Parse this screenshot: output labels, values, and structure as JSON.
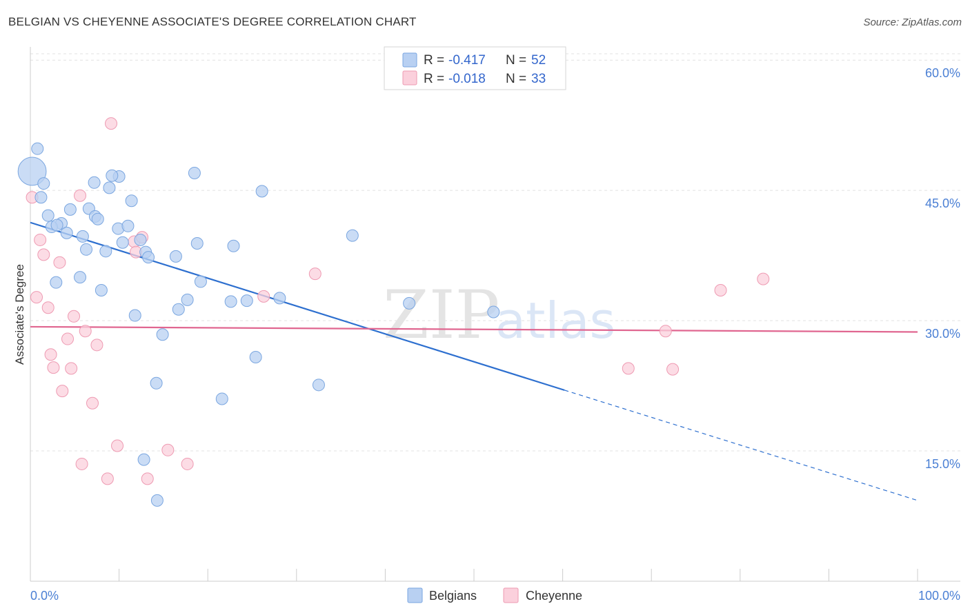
{
  "title": "BELGIAN VS CHEYENNE ASSOCIATE'S DEGREE CORRELATION CHART",
  "source": "Source: ZipAtlas.com",
  "watermark": {
    "zip": "ZIP",
    "atlas": "atlas"
  },
  "colors": {
    "belgians_fill": "#b8d0f2",
    "belgians_stroke": "#7aa6e0",
    "belgians_line": "#2d6fcf",
    "cheyenne_fill": "#fbd0dc",
    "cheyenne_stroke": "#ee9ab2",
    "cheyenne_line": "#e06690",
    "tick_label": "#4a7fd4",
    "grid": "#e2e2e2"
  },
  "legend": {
    "rows": [
      {
        "series": "Belgians",
        "r_label": "R =",
        "r_value": "-0.417",
        "n_label": "N =",
        "n_value": "52"
      },
      {
        "series": "Cheyenne",
        "r_label": "R =",
        "r_value": "-0.018",
        "n_label": "N =",
        "n_value": "33"
      }
    ]
  },
  "chart_data": {
    "type": "scatter",
    "title": "BELGIAN VS CHEYENNE ASSOCIATE'S DEGREE CORRELATION CHART",
    "xlabel": "",
    "ylabel": "Associate's Degree",
    "xlim": [
      0,
      100
    ],
    "ylim": [
      0,
      62
    ],
    "x_tick_labels": [
      {
        "value": 0,
        "label": "0.0%"
      },
      {
        "value": 100,
        "label": "100.0%"
      }
    ],
    "y_ticks": [
      {
        "value": 15,
        "label": "15.0%"
      },
      {
        "value": 30,
        "label": "30.0%"
      },
      {
        "value": 45,
        "label": "45.0%"
      },
      {
        "value": 60,
        "label": "60.0%"
      }
    ],
    "x_minor_ticks": [
      10,
      20,
      30,
      40,
      50,
      60,
      70,
      80,
      90,
      100
    ],
    "grid": true,
    "legend_position": "bottom",
    "series": [
      {
        "name": "Belgians",
        "points": [
          [
            0.8,
            49.8
          ],
          [
            0.2,
            47.2
          ],
          [
            1.5,
            45.8
          ],
          [
            1.2,
            44.2
          ],
          [
            7.2,
            45.9
          ],
          [
            10.0,
            46.6
          ],
          [
            9.2,
            46.7
          ],
          [
            8.9,
            45.3
          ],
          [
            18.5,
            47.0
          ],
          [
            26.1,
            44.9
          ],
          [
            11.4,
            43.8
          ],
          [
            2.0,
            42.1
          ],
          [
            4.5,
            42.8
          ],
          [
            6.6,
            42.9
          ],
          [
            7.3,
            42.0
          ],
          [
            7.6,
            41.7
          ],
          [
            3.5,
            41.2
          ],
          [
            2.4,
            40.8
          ],
          [
            3.0,
            41.0
          ],
          [
            4.1,
            40.1
          ],
          [
            5.9,
            39.7
          ],
          [
            9.9,
            40.6
          ],
          [
            11.0,
            40.9
          ],
          [
            10.4,
            39.0
          ],
          [
            12.4,
            39.3
          ],
          [
            18.8,
            38.9
          ],
          [
            22.9,
            38.6
          ],
          [
            36.3,
            39.8
          ],
          [
            6.3,
            38.2
          ],
          [
            8.5,
            38.0
          ],
          [
            13.0,
            37.9
          ],
          [
            13.3,
            37.3
          ],
          [
            16.4,
            37.4
          ],
          [
            5.6,
            35.0
          ],
          [
            2.9,
            34.4
          ],
          [
            19.2,
            34.5
          ],
          [
            8.0,
            33.5
          ],
          [
            17.7,
            32.4
          ],
          [
            22.6,
            32.2
          ],
          [
            24.4,
            32.3
          ],
          [
            28.1,
            32.6
          ],
          [
            42.7,
            32.0
          ],
          [
            16.7,
            31.3
          ],
          [
            11.8,
            30.6
          ],
          [
            52.2,
            31.0
          ],
          [
            14.9,
            28.4
          ],
          [
            25.4,
            25.8
          ],
          [
            14.2,
            22.8
          ],
          [
            32.5,
            22.6
          ],
          [
            21.6,
            21.0
          ],
          [
            12.8,
            14.0
          ],
          [
            14.3,
            9.3
          ]
        ],
        "sizes": [
          1,
          2.4,
          1,
          1,
          1,
          1,
          1,
          1,
          1,
          1,
          1,
          1,
          1,
          1,
          1,
          1,
          1,
          1,
          1,
          1,
          1,
          1,
          1,
          1,
          1,
          1,
          1,
          1,
          1,
          1,
          1,
          1,
          1,
          1,
          1,
          1,
          1,
          1,
          1,
          1,
          1,
          1,
          1,
          1,
          1,
          1,
          1,
          1,
          1,
          1,
          1,
          1
        ],
        "trend": {
          "x0": 0,
          "y0": 41.3,
          "x1": 60.2,
          "y1": 22.0,
          "dash_x1": 100,
          "dash_y1": 9.3
        }
      },
      {
        "name": "Cheyenne",
        "points": [
          [
            9.1,
            52.7
          ],
          [
            0.2,
            44.2
          ],
          [
            5.6,
            44.4
          ],
          [
            1.1,
            39.3
          ],
          [
            11.7,
            39.1
          ],
          [
            12.6,
            39.6
          ],
          [
            11.9,
            37.9
          ],
          [
            1.5,
            37.6
          ],
          [
            3.3,
            36.7
          ],
          [
            32.1,
            35.4
          ],
          [
            82.6,
            34.8
          ],
          [
            77.8,
            33.5
          ],
          [
            26.3,
            32.8
          ],
          [
            0.7,
            32.7
          ],
          [
            2.0,
            31.5
          ],
          [
            4.9,
            30.5
          ],
          [
            6.2,
            28.8
          ],
          [
            71.6,
            28.8
          ],
          [
            4.2,
            27.9
          ],
          [
            7.5,
            27.2
          ],
          [
            2.3,
            26.1
          ],
          [
            2.6,
            24.6
          ],
          [
            4.6,
            24.5
          ],
          [
            67.4,
            24.5
          ],
          [
            72.4,
            24.4
          ],
          [
            3.6,
            21.9
          ],
          [
            7.0,
            20.5
          ],
          [
            9.8,
            15.6
          ],
          [
            15.5,
            15.1
          ],
          [
            5.8,
            13.5
          ],
          [
            17.7,
            13.5
          ],
          [
            8.7,
            11.8
          ],
          [
            13.2,
            11.8
          ]
        ],
        "sizes": [
          1,
          1,
          1,
          1,
          1,
          1,
          1,
          1,
          1,
          1,
          1,
          1,
          1,
          1,
          1,
          1,
          1,
          1,
          1,
          1,
          1,
          1,
          1,
          1,
          1,
          1,
          1,
          1,
          1,
          1,
          1,
          1,
          1
        ],
        "trend": {
          "x0": 0,
          "y0": 29.3,
          "x1": 100,
          "y1": 28.7
        }
      }
    ]
  }
}
